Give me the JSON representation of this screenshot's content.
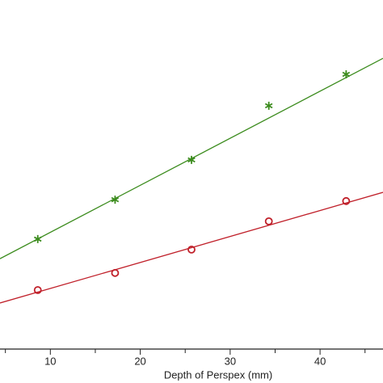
{
  "chart_data": {
    "type": "scatter",
    "x_label": "Depth of Perspex (mm)",
    "xlim": [
      4.4,
      47
    ],
    "ylim": [
      0,
      100
    ],
    "xticks": [
      10,
      20,
      30,
      40
    ],
    "minor_xticks": [
      5,
      15,
      25,
      35,
      45
    ],
    "series": [
      {
        "marker": "star",
        "color": "#3c8c1e",
        "x": [
          8.6,
          17.2,
          25.7,
          34.3,
          42.9
        ],
        "values": [
          31.5,
          42.8,
          54.2,
          69.7,
          78.7
        ]
      },
      {
        "marker": "line",
        "color": "#3c8c1e",
        "x": [
          4.4,
          47
        ],
        "values": [
          25.9,
          83.3
        ]
      },
      {
        "marker": "circle",
        "color": "#c0202a",
        "x": [
          8.6,
          17.2,
          25.7,
          34.3,
          42.9
        ],
        "values": [
          16.9,
          21.8,
          28.5,
          36.6,
          42.4
        ]
      },
      {
        "marker": "line",
        "color": "#c0202a",
        "x": [
          4.4,
          47
        ],
        "values": [
          13.2,
          44.9
        ]
      }
    ]
  }
}
